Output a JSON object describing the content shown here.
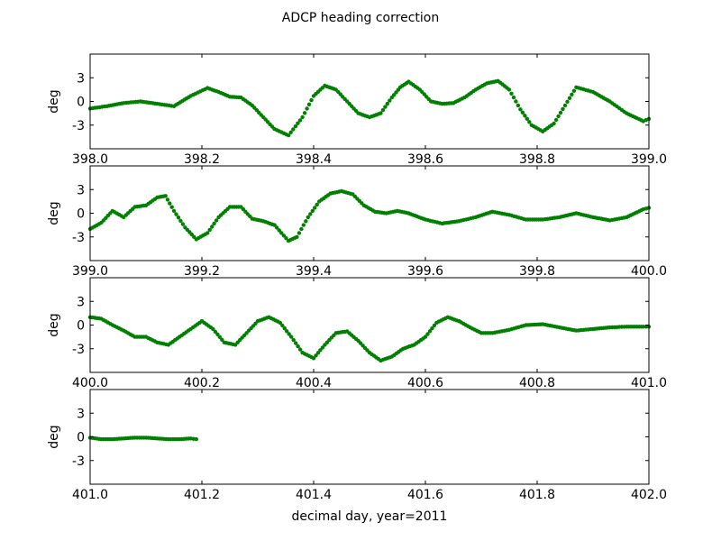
{
  "figure": {
    "title": "ADCP heading correction",
    "xlabel": "decimal day, year=2011"
  },
  "chart_data": [
    {
      "type": "scatter",
      "ylabel": "deg",
      "xlim": [
        398.0,
        399.0
      ],
      "ylim": [
        -6,
        6
      ],
      "xticks": [
        "398.0",
        "398.2",
        "398.4",
        "398.6",
        "398.8",
        "399.0"
      ],
      "yticks": [
        "3",
        "0",
        "-3"
      ],
      "color": "#008000",
      "x": [
        398.0,
        398.03,
        398.06,
        398.09,
        398.12,
        398.15,
        398.18,
        398.21,
        398.23,
        398.25,
        398.27,
        398.29,
        398.31,
        398.33,
        398.355,
        398.38,
        398.4,
        398.42,
        398.44,
        398.46,
        398.48,
        398.5,
        398.52,
        398.54,
        398.555,
        398.57,
        398.59,
        398.61,
        398.63,
        398.65,
        398.67,
        398.69,
        398.71,
        398.73,
        398.75,
        398.77,
        398.79,
        398.81,
        398.83,
        398.85,
        398.87,
        398.9,
        398.93,
        398.96,
        398.99,
        399.0
      ],
      "y": [
        -0.9,
        -0.6,
        -0.2,
        0.0,
        -0.3,
        -0.6,
        0.7,
        1.7,
        1.2,
        0.6,
        0.5,
        -0.5,
        -2.0,
        -3.5,
        -4.3,
        -2.0,
        0.7,
        2.0,
        1.5,
        0.0,
        -1.5,
        -2.0,
        -1.5,
        0.5,
        1.8,
        2.5,
        1.5,
        0.0,
        -0.3,
        -0.2,
        0.5,
        1.5,
        2.3,
        2.6,
        1.5,
        -1.0,
        -3.0,
        -3.8,
        -2.8,
        -0.5,
        1.8,
        1.2,
        0.0,
        -1.5,
        -2.5,
        -2.2
      ]
    },
    {
      "type": "scatter",
      "ylabel": "deg",
      "xlim": [
        399.0,
        400.0
      ],
      "ylim": [
        -6,
        6
      ],
      "xticks": [
        "399.0",
        "399.2",
        "399.4",
        "399.6",
        "399.8",
        "400.0"
      ],
      "yticks": [
        "3",
        "0",
        "-3"
      ],
      "color": "#008000",
      "x": [
        399.0,
        399.02,
        399.04,
        399.06,
        399.08,
        399.1,
        399.12,
        399.135,
        399.15,
        399.17,
        399.19,
        399.21,
        399.23,
        399.25,
        399.27,
        399.29,
        399.31,
        399.33,
        399.355,
        399.37,
        399.39,
        399.41,
        399.43,
        399.45,
        399.47,
        399.49,
        399.51,
        399.53,
        399.55,
        399.57,
        399.6,
        399.63,
        399.66,
        399.69,
        399.72,
        399.75,
        399.78,
        399.81,
        399.84,
        399.87,
        399.9,
        399.93,
        399.96,
        399.99,
        400.0
      ],
      "y": [
        -2.0,
        -1.2,
        0.3,
        -0.5,
        0.8,
        1.0,
        2.0,
        2.2,
        0.3,
        -1.8,
        -3.3,
        -2.5,
        -0.5,
        0.8,
        0.8,
        -0.7,
        -1.0,
        -1.5,
        -3.5,
        -3.0,
        -0.5,
        1.5,
        2.5,
        2.8,
        2.4,
        1.0,
        0.2,
        0.0,
        0.3,
        0.0,
        -0.8,
        -1.3,
        -1.0,
        -0.5,
        0.2,
        -0.2,
        -0.8,
        -0.8,
        -0.5,
        0.0,
        -0.5,
        -0.9,
        -0.5,
        0.5,
        0.7
      ]
    },
    {
      "type": "scatter",
      "ylabel": "deg",
      "xlim": [
        400.0,
        401.0
      ],
      "ylim": [
        -6,
        6
      ],
      "xticks": [
        "400.0",
        "400.2",
        "400.4",
        "400.6",
        "400.8",
        "401.0"
      ],
      "yticks": [
        "3",
        "0",
        "-3"
      ],
      "color": "#008000",
      "x": [
        400.0,
        400.02,
        400.04,
        400.06,
        400.08,
        400.1,
        400.12,
        400.14,
        400.16,
        400.18,
        400.2,
        400.22,
        400.24,
        400.26,
        400.28,
        400.3,
        400.32,
        400.34,
        400.36,
        400.38,
        400.4,
        400.42,
        400.44,
        400.46,
        400.48,
        400.5,
        400.52,
        400.54,
        400.56,
        400.58,
        400.6,
        400.62,
        400.64,
        400.66,
        400.68,
        400.7,
        400.72,
        400.75,
        400.78,
        400.81,
        400.84,
        400.87,
        400.9,
        400.93,
        400.96,
        400.99,
        401.0
      ],
      "y": [
        1.0,
        0.8,
        0.0,
        -0.7,
        -1.5,
        -1.5,
        -2.2,
        -2.5,
        -1.5,
        -0.5,
        0.5,
        -0.5,
        -2.2,
        -2.5,
        -1.0,
        0.5,
        1.0,
        0.3,
        -1.5,
        -3.5,
        -4.2,
        -2.5,
        -1.0,
        -0.8,
        -2.0,
        -3.5,
        -4.5,
        -4.0,
        -3.0,
        -2.5,
        -1.5,
        0.3,
        1.0,
        0.5,
        -0.3,
        -1.0,
        -1.0,
        -0.6,
        0.0,
        0.1,
        -0.3,
        -0.7,
        -0.5,
        -0.3,
        -0.2,
        -0.2,
        -0.2
      ]
    },
    {
      "type": "scatter",
      "ylabel": "deg",
      "xlim": [
        401.0,
        402.0
      ],
      "ylim": [
        -6,
        6
      ],
      "xticks": [
        "401.0",
        "401.2",
        "401.4",
        "401.6",
        "401.8",
        "402.0"
      ],
      "yticks": [
        "3",
        "0",
        "-3"
      ],
      "color": "#008000",
      "x": [
        401.0,
        401.02,
        401.04,
        401.06,
        401.08,
        401.1,
        401.12,
        401.14,
        401.16,
        401.18,
        401.19
      ],
      "y": [
        -0.1,
        -0.3,
        -0.3,
        -0.2,
        -0.1,
        -0.1,
        -0.2,
        -0.3,
        -0.3,
        -0.2,
        -0.3
      ]
    }
  ]
}
